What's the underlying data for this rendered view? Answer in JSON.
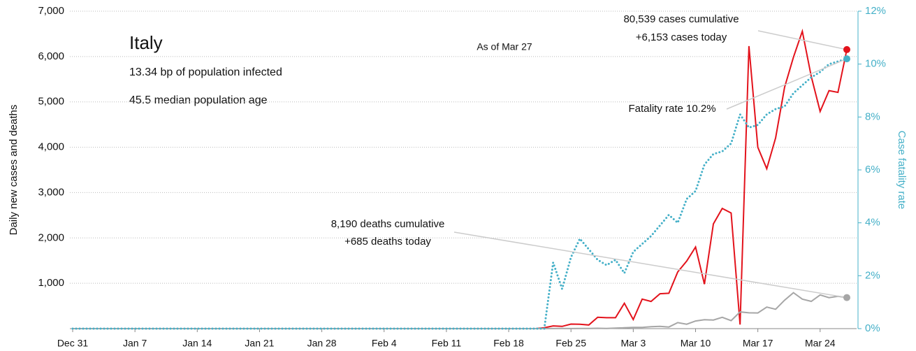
{
  "chart_data": {
    "type": "line",
    "title": "Italy",
    "subtitles": [
      "13.34 bp of population infected",
      "45.5 median population age"
    ],
    "note": "As of Mar 27",
    "ylabel": "Daily new cases and deaths",
    "y2label": "Case fatality rate",
    "annotations": [
      "80,539 cases cumulative",
      "+6,153 cases today",
      "Fatality rate 10.2%",
      "8,190 deaths cumulative",
      "+685 deaths today"
    ],
    "categories": [
      "Dec 31",
      null,
      null,
      null,
      null,
      null,
      null,
      "Jan 7",
      null,
      null,
      null,
      null,
      null,
      null,
      "Jan 14",
      null,
      null,
      null,
      null,
      null,
      null,
      "Jan 21",
      null,
      null,
      null,
      null,
      null,
      null,
      "Jan 28",
      null,
      null,
      null,
      null,
      null,
      null,
      "Feb 4",
      null,
      null,
      null,
      null,
      null,
      null,
      "Feb 11",
      null,
      null,
      null,
      null,
      null,
      null,
      "Feb 18",
      null,
      null,
      null,
      null,
      null,
      null,
      "Feb 25",
      null,
      null,
      null,
      null,
      null,
      null,
      "Mar 3",
      null,
      null,
      null,
      null,
      null,
      null,
      "Mar 10",
      null,
      null,
      null,
      null,
      null,
      null,
      "Mar 17",
      null,
      null,
      null,
      null,
      null,
      null,
      "Mar 24",
      null,
      null,
      null
    ],
    "series": [
      {
        "color": "#e3121b",
        "style": "solid",
        "values": [
          0,
          0,
          0,
          0,
          0,
          0,
          0,
          0,
          0,
          0,
          0,
          0,
          0,
          0,
          0,
          0,
          0,
          0,
          0,
          0,
          0,
          0,
          0,
          0,
          0,
          0,
          0,
          0,
          0,
          0,
          0,
          0,
          0,
          0,
          0,
          0,
          0,
          0,
          0,
          0,
          0,
          0,
          0,
          0,
          0,
          0,
          0,
          0,
          0,
          0,
          0,
          0,
          0,
          20,
          60,
          50,
          100,
          95,
          80,
          250,
          240,
          240,
          560,
          200,
          650,
          600,
          770,
          780,
          1250,
          1490,
          1800,
          980,
          2310,
          2650,
          2550,
          90,
          6230,
          4000,
          3526,
          4207,
          5322,
          5986,
          6557,
          5560,
          4789,
          5249,
          5210,
          6153
        ]
      },
      {
        "color": "#a6a6a6",
        "style": "solid",
        "values": [
          0,
          0,
          0,
          0,
          0,
          0,
          0,
          0,
          0,
          0,
          0,
          0,
          0,
          0,
          0,
          0,
          0,
          0,
          0,
          0,
          0,
          0,
          0,
          0,
          0,
          0,
          0,
          0,
          0,
          0,
          0,
          0,
          0,
          0,
          0,
          0,
          0,
          0,
          0,
          0,
          0,
          0,
          0,
          0,
          0,
          0,
          0,
          0,
          0,
          0,
          0,
          0,
          0,
          1,
          2,
          3,
          2,
          5,
          4,
          8,
          5,
          12,
          18,
          27,
          28,
          41,
          49,
          36,
          133,
          97,
          168,
          196,
          189,
          250,
          175,
          368,
          349,
          345,
          475,
          427,
          627,
          793,
          651,
          601,
          743,
          683,
          712,
          685
        ]
      },
      {
        "color": "#45b0c8",
        "style": "dotted",
        "axis": "y2",
        "values": [
          0,
          0,
          0,
          0,
          0,
          0,
          0,
          0,
          0,
          0,
          0,
          0,
          0,
          0,
          0,
          0,
          0,
          0,
          0,
          0,
          0,
          0,
          0,
          0,
          0,
          0,
          0,
          0,
          0,
          0,
          0,
          0,
          0,
          0,
          0,
          0,
          0,
          0,
          0,
          0,
          0,
          0,
          0,
          0,
          0,
          0,
          0,
          0,
          0,
          0,
          0,
          0,
          0,
          0,
          2.5,
          1.5,
          2.7,
          3.4,
          3.0,
          2.6,
          2.4,
          2.6,
          2.1,
          2.9,
          3.2,
          3.5,
          3.9,
          4.3,
          4.0,
          4.9,
          5.2,
          6.2,
          6.6,
          6.7,
          7.0,
          8.1,
          7.6,
          7.7,
          8.1,
          8.3,
          8.4,
          8.9,
          9.2,
          9.5,
          9.7,
          10.0,
          10.1,
          10.2
        ]
      }
    ],
    "ylim": [
      0,
      7000
    ],
    "yticks": [
      {
        "value": 1000,
        "label": "1,000"
      },
      {
        "value": 2000,
        "label": "2,000"
      },
      {
        "value": 3000,
        "label": "3,000"
      },
      {
        "value": 4000,
        "label": "4,000"
      },
      {
        "value": 5000,
        "label": "5,000"
      },
      {
        "value": 6000,
        "label": "6,000"
      },
      {
        "value": 7000,
        "label": "7,000"
      }
    ],
    "y2lim": [
      0,
      12
    ],
    "y2ticks": [
      {
        "value": 0,
        "label": "0%"
      },
      {
        "value": 2,
        "label": "2%"
      },
      {
        "value": 4,
        "label": "4%"
      },
      {
        "value": 6,
        "label": "6%"
      },
      {
        "value": 8,
        "label": "8%"
      },
      {
        "value": 10,
        "label": "10%"
      },
      {
        "value": 12,
        "label": "12%"
      }
    ],
    "grid": true
  }
}
